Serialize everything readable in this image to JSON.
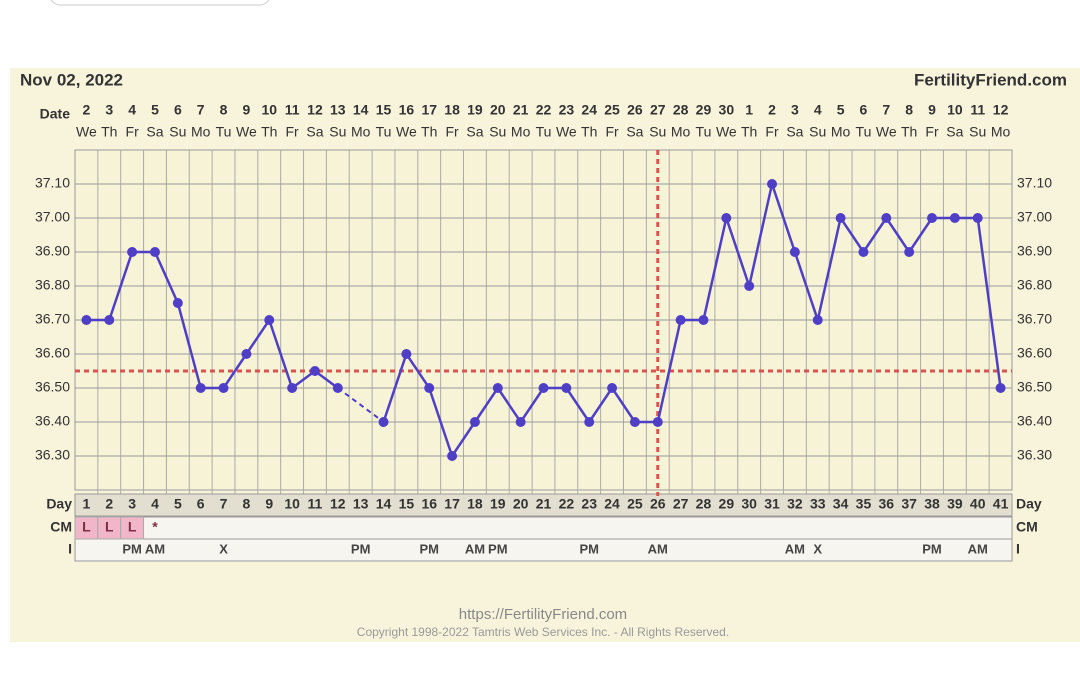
{
  "chart_data": {
    "type": "line",
    "title": "Nov 02, 2022",
    "site": "FertilityFriend.com",
    "date_label": "Date",
    "dates": [
      2,
      3,
      4,
      5,
      6,
      7,
      8,
      9,
      10,
      11,
      12,
      13,
      14,
      15,
      16,
      17,
      18,
      19,
      20,
      21,
      22,
      23,
      24,
      25,
      26,
      27,
      28,
      29,
      30,
      1,
      2,
      3,
      4,
      5,
      6,
      7,
      8,
      9,
      10,
      11,
      12
    ],
    "weekdays": [
      "We",
      "Th",
      "Fr",
      "Sa",
      "Su",
      "Mo",
      "Tu",
      "We",
      "Th",
      "Fr",
      "Sa",
      "Su",
      "Mo",
      "Tu",
      "We",
      "Th",
      "Fr",
      "Sa",
      "Su",
      "Mo",
      "Tu",
      "We",
      "Th",
      "Fr",
      "Sa",
      "Su",
      "Mo",
      "Tu",
      "We",
      "Th",
      "Fr",
      "Sa",
      "Su",
      "Mo",
      "Tu",
      "We",
      "Th",
      "Fr",
      "Sa",
      "Su",
      "Mo"
    ],
    "day_label": "Day",
    "categories": [
      1,
      2,
      3,
      4,
      5,
      6,
      7,
      8,
      9,
      10,
      11,
      12,
      13,
      14,
      15,
      16,
      17,
      18,
      19,
      20,
      21,
      22,
      23,
      24,
      25,
      26,
      27,
      28,
      29,
      30,
      31,
      32,
      33,
      34,
      35,
      36,
      37,
      38,
      39,
      40,
      41
    ],
    "values": [
      36.7,
      36.7,
      36.9,
      36.9,
      36.75,
      36.5,
      36.5,
      36.6,
      36.7,
      36.5,
      36.55,
      36.5,
      null,
      36.4,
      36.6,
      36.5,
      36.3,
      36.4,
      36.5,
      36.4,
      36.5,
      36.5,
      36.4,
      36.5,
      36.4,
      36.4,
      36.7,
      36.7,
      37.0,
      36.8,
      37.1,
      36.9,
      36.7,
      37.0,
      36.9,
      37.0,
      36.9,
      37.0,
      37.0,
      37.0,
      36.5
    ],
    "color": "#4f3fc6",
    "coverline": 36.55,
    "ovulation_day": 26,
    "marker_color": "#d9534f",
    "cm_label": "CM",
    "cm": [
      "L",
      "L",
      "L",
      "*",
      null,
      null,
      null,
      null,
      null,
      null,
      null,
      null,
      null,
      null,
      null,
      null,
      null,
      null,
      null,
      null,
      null,
      null,
      null,
      null,
      null,
      null,
      null,
      null,
      null,
      null,
      null,
      null,
      null,
      null,
      null,
      null,
      null,
      null,
      null,
      null,
      null
    ],
    "i_label": "I",
    "intercourse": [
      null,
      null,
      "PM",
      "AM",
      null,
      null,
      "X",
      null,
      null,
      null,
      null,
      null,
      "PM",
      null,
      null,
      "PM",
      null,
      "AM",
      "PM",
      null,
      null,
      null,
      "PM",
      null,
      null,
      "AM",
      null,
      null,
      null,
      null,
      null,
      "AM",
      "X",
      null,
      null,
      null,
      null,
      "PM",
      null,
      "AM",
      null
    ],
    "ylim": [
      36.2,
      37.2
    ],
    "yticks": [
      {
        "value": 36.3,
        "label": "36.30"
      },
      {
        "value": 36.4,
        "label": "36.40"
      },
      {
        "value": 36.5,
        "label": "36.50"
      },
      {
        "value": 36.6,
        "label": "36.60"
      },
      {
        "value": 36.7,
        "label": "36.70"
      },
      {
        "value": 36.8,
        "label": "36.80"
      },
      {
        "value": 36.9,
        "label": "36.90"
      },
      {
        "value": 37.0,
        "label": "37.00"
      },
      {
        "value": 37.1,
        "label": "37.10"
      }
    ],
    "grid": true,
    "footer_url": "https://FertilityFriend.com",
    "copyright": "Copyright 1998-2022 Tamtris Web Services Inc. - All Rights Reserved."
  }
}
